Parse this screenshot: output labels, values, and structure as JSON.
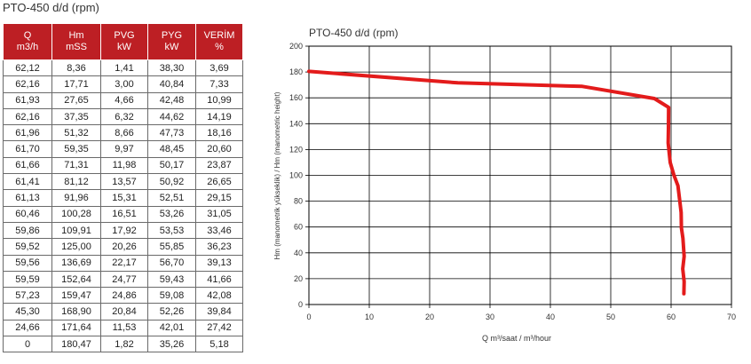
{
  "page_title": "PTO-450 d/d (rpm)",
  "table": {
    "headers": [
      {
        "line1": "Q",
        "line2": "m3/h"
      },
      {
        "line1": "Hm",
        "line2": "mSS"
      },
      {
        "line1": "PVG",
        "line2": "kW"
      },
      {
        "line1": "PYG",
        "line2": "kW"
      },
      {
        "line1": "VERİM",
        "line2": "%"
      }
    ],
    "rows": [
      [
        "62,12",
        "8,36",
        "1,41",
        "38,30",
        "3,69"
      ],
      [
        "62,16",
        "17,71",
        "3,00",
        "40,84",
        "7,33"
      ],
      [
        "61,93",
        "27,65",
        "4,66",
        "42,48",
        "10,99"
      ],
      [
        "62,16",
        "37,35",
        "6,32",
        "44,62",
        "14,19"
      ],
      [
        "61,96",
        "51,32",
        "8,66",
        "47,73",
        "18,16"
      ],
      [
        "61,70",
        "59,35",
        "9,97",
        "48,45",
        "20,60"
      ],
      [
        "61,66",
        "71,31",
        "11,98",
        "50,17",
        "23,87"
      ],
      [
        "61,41",
        "81,12",
        "13,57",
        "50,92",
        "26,65"
      ],
      [
        "61,13",
        "91,96",
        "15,31",
        "52,51",
        "29,15"
      ],
      [
        "60,46",
        "100,28",
        "16,51",
        "53,26",
        "31,05"
      ],
      [
        "59,86",
        "109,91",
        "17,92",
        "53,53",
        "33,46"
      ],
      [
        "59,52",
        "125,00",
        "20,26",
        "55,85",
        "36,23"
      ],
      [
        "59,56",
        "136,69",
        "22,17",
        "56,70",
        "39,13"
      ],
      [
        "59,59",
        "152,64",
        "24,77",
        "59,43",
        "41,66"
      ],
      [
        "57,23",
        "159,47",
        "24,86",
        "59,08",
        "42,08"
      ],
      [
        "45,30",
        "168,90",
        "20,84",
        "52,26",
        "39,84"
      ],
      [
        "24,66",
        "171,64",
        "11,53",
        "42,01",
        "27,42"
      ],
      [
        "0",
        "180,47",
        "1,82",
        "35,26",
        "5,18"
      ]
    ]
  },
  "chart_data": {
    "type": "line",
    "title": "PTO-450 d/d (rpm)",
    "xlabel": "Q m³/saat   /   m³/hour",
    "ylabel": "Hm (manometrik yükseklik) / Hm (manometric height)",
    "xlim": [
      0,
      70
    ],
    "ylim": [
      0,
      200
    ],
    "xticks": [
      0,
      10,
      20,
      30,
      40,
      50,
      60,
      70
    ],
    "yticks": [
      0,
      20,
      40,
      60,
      80,
      100,
      120,
      140,
      160,
      180,
      200
    ],
    "grid": true,
    "line_color": "#e31b1b",
    "series": [
      {
        "x": [
          0,
          24.66,
          45.3,
          57.23,
          59.59,
          59.56,
          59.52,
          59.86,
          60.46,
          61.13,
          61.41,
          61.66,
          61.7,
          61.96,
          62.16,
          61.93,
          62.16,
          62.12
        ],
        "y": [
          180.47,
          171.64,
          168.9,
          159.47,
          152.64,
          136.69,
          125.0,
          109.91,
          100.28,
          91.96,
          81.12,
          71.31,
          59.35,
          51.32,
          37.35,
          27.65,
          17.71,
          8.36
        ]
      }
    ]
  }
}
